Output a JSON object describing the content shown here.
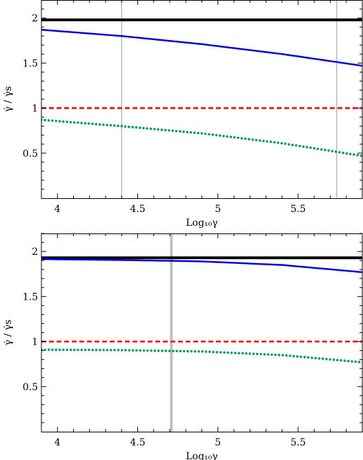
{
  "chart_data": [
    {
      "type": "line",
      "title": "",
      "xlabel": "Log₁₀γ",
      "ylabel": "γ̇ / γ̇s",
      "xlim": [
        3.9,
        5.9
      ],
      "ylim": [
        0.0,
        2.2
      ],
      "x_ticks": [
        4,
        4.5,
        5,
        5.5
      ],
      "x_tick_labels": [
        "4",
        "4.5",
        "5",
        "5.5"
      ],
      "y_ticks": [
        0.5,
        1,
        1.5,
        2
      ],
      "y_tick_labels": [
        "0.5",
        "1",
        "1.5",
        "2"
      ],
      "grid": false,
      "legend": "none",
      "vertical_lines": [
        {
          "x": 4.4,
          "color": "#b8b8b8"
        },
        {
          "x": 5.74,
          "color": "#b8b8b8"
        }
      ],
      "series": [
        {
          "style": "solid",
          "color": "#000000",
          "x": [
            3.9,
            5.9
          ],
          "y": [
            1.98,
            1.98
          ]
        },
        {
          "style": "solid",
          "color": "#0000dd",
          "x": [
            3.9,
            4.4,
            4.9,
            5.4,
            5.9
          ],
          "y": [
            1.87,
            1.8,
            1.71,
            1.6,
            1.47
          ]
        },
        {
          "style": "dashed",
          "color": "#ee0000",
          "x": [
            3.9,
            5.9
          ],
          "y": [
            1.0,
            1.0
          ]
        },
        {
          "style": "dotted",
          "color": "#009966",
          "x": [
            3.9,
            4.4,
            4.9,
            5.4,
            5.9
          ],
          "y": [
            0.87,
            0.8,
            0.72,
            0.61,
            0.47
          ]
        }
      ]
    },
    {
      "type": "line",
      "title": "",
      "xlabel": "Log₁₀γ",
      "ylabel": "γ̇ / γ̇s",
      "xlim": [
        3.9,
        5.9
      ],
      "ylim": [
        0.0,
        2.2
      ],
      "x_ticks": [
        4,
        4.5,
        5,
        5.5
      ],
      "x_tick_labels": [
        "4",
        "4.5",
        "5",
        "5.5"
      ],
      "y_ticks": [
        0.5,
        1,
        1.5,
        2
      ],
      "y_tick_labels": [
        "0.5",
        "1",
        "1.5",
        "2"
      ],
      "grid": false,
      "legend": "none",
      "vertical_lines": [
        {
          "x": 4.71,
          "color": "#c0c0c0",
          "thick": true
        }
      ],
      "series": [
        {
          "style": "solid",
          "color": "#000000",
          "x": [
            3.9,
            5.9
          ],
          "y": [
            1.93,
            1.93
          ]
        },
        {
          "style": "solid",
          "color": "#0000dd",
          "x": [
            3.9,
            4.4,
            4.9,
            5.4,
            5.9
          ],
          "y": [
            1.915,
            1.905,
            1.89,
            1.85,
            1.77
          ]
        },
        {
          "style": "dashed",
          "color": "#ee0000",
          "x": [
            3.9,
            5.9
          ],
          "y": [
            1.0,
            1.0
          ]
        },
        {
          "style": "dotted",
          "color": "#009966",
          "x": [
            3.9,
            4.4,
            4.9,
            5.4,
            5.9
          ],
          "y": [
            0.91,
            0.905,
            0.89,
            0.85,
            0.77
          ]
        }
      ]
    }
  ]
}
